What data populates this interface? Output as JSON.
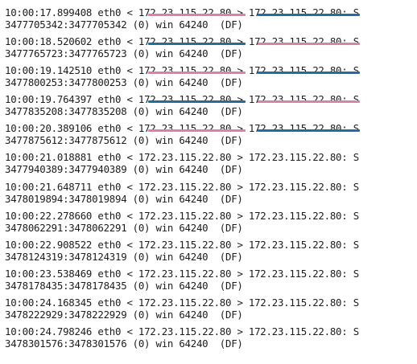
{
  "colors": {
    "text": "#1c1c1c",
    "pink": "#e07fa6",
    "blue": "#1e6f9f"
  },
  "entries": [
    {
      "time": "10:00:17.899408",
      "iface": "eth0",
      "src": "172.23.115.22.80",
      "dst": "172.23.115.22.80:",
      "flag": "S",
      "seq": "3477705342:3477705342",
      "len": "(0)",
      "win": "win 64240",
      "df": "(DF)",
      "src_mark": "pink",
      "dst_mark": "blue"
    },
    {
      "time": "10:00:18.520602",
      "iface": "eth0",
      "src": "172.23.115.22.80",
      "dst": "172.23.115.22.80:",
      "flag": "S",
      "seq": "3477765723:3477765723",
      "len": "(0)",
      "win": "win 64240",
      "df": "(DF)",
      "src_mark": "blue",
      "dst_mark": "pink"
    },
    {
      "time": "10:00:19.142510",
      "iface": "eth0",
      "src": "172.23.115.22.80",
      "dst": "172.23.115.22.80:",
      "flag": "S",
      "seq": "3477800253:3477800253",
      "len": "(0)",
      "win": "win 64240",
      "df": "(DF)",
      "src_mark": "pink",
      "dst_mark": "blue"
    },
    {
      "time": "10:00:19.764397",
      "iface": "eth0",
      "src": "172.23.115.22.80",
      "dst": "172.23.115.22.80:",
      "flag": "S",
      "seq": "3477835208:3477835208",
      "len": "(0)",
      "win": "win 64240",
      "df": "(DF)",
      "src_mark": "blue",
      "dst_mark": "pink"
    },
    {
      "time": "10:00:20.389106",
      "iface": "eth0",
      "src": "172.23.115.22.80",
      "dst": "172.23.115.22.80:",
      "flag": "S",
      "seq": "3477875612:3477875612",
      "len": "(0)",
      "win": "win 64240",
      "df": "(DF)",
      "src_mark": "pink",
      "dst_mark": "blue"
    },
    {
      "time": "10:00:21.018881",
      "iface": "eth0",
      "src": "172.23.115.22.80",
      "dst": "172.23.115.22.80:",
      "flag": "S",
      "seq": "3477940389:3477940389",
      "len": "(0)",
      "win": "win 64240",
      "df": "(DF)",
      "src_mark": "",
      "dst_mark": ""
    },
    {
      "time": "10:00:21.648711",
      "iface": "eth0",
      "src": "172.23.115.22.80",
      "dst": "172.23.115.22.80:",
      "flag": "S",
      "seq": "3478019894:3478019894",
      "len": "(0)",
      "win": "win 64240",
      "df": "(DF)",
      "src_mark": "",
      "dst_mark": ""
    },
    {
      "time": "10:00:22.278660",
      "iface": "eth0",
      "src": "172.23.115.22.80",
      "dst": "172.23.115.22.80:",
      "flag": "S",
      "seq": "3478062291:3478062291",
      "len": "(0)",
      "win": "win 64240",
      "df": "(DF)",
      "src_mark": "",
      "dst_mark": ""
    },
    {
      "time": "10:00:22.908522",
      "iface": "eth0",
      "src": "172.23.115.22.80",
      "dst": "172.23.115.22.80:",
      "flag": "S",
      "seq": "3478124319:3478124319",
      "len": "(0)",
      "win": "win 64240",
      "df": "(DF)",
      "src_mark": "",
      "dst_mark": ""
    },
    {
      "time": "10:00:23.538469",
      "iface": "eth0",
      "src": "172.23.115.22.80",
      "dst": "172.23.115.22.80:",
      "flag": "S",
      "seq": "3478178435:3478178435",
      "len": "(0)",
      "win": "win 64240",
      "df": "(DF)",
      "src_mark": "",
      "dst_mark": ""
    },
    {
      "time": "10:00:24.168345",
      "iface": "eth0",
      "src": "172.23.115.22.80",
      "dst": "172.23.115.22.80:",
      "flag": "S",
      "seq": "3478222929:3478222929",
      "len": "(0)",
      "win": "win 64240",
      "df": "(DF)",
      "src_mark": "",
      "dst_mark": ""
    },
    {
      "time": "10:00:24.798246",
      "iface": "eth0",
      "src": "172.23.115.22.80",
      "dst": "172.23.115.22.80:",
      "flag": "S",
      "seq": "3478301576:3478301576",
      "len": "(0)",
      "win": "win 64240",
      "df": "(DF)",
      "src_mark": "",
      "dst_mark": ""
    }
  ]
}
